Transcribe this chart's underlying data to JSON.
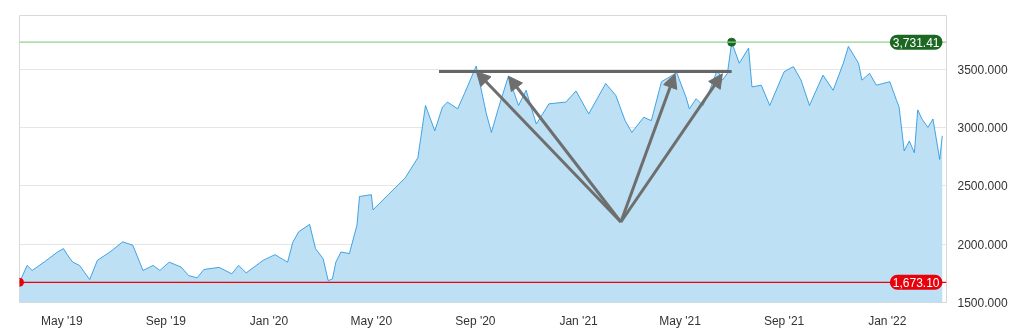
{
  "chart_data": {
    "type": "area",
    "x": [
      "2019-03-12",
      "2019-03-21",
      "2019-03-27",
      "2019-04-10",
      "2019-04-26",
      "2019-05-03",
      "2019-05-08",
      "2019-05-14",
      "2019-05-22",
      "2019-06-03",
      "2019-06-12",
      "2019-06-27",
      "2019-07-12",
      "2019-07-24",
      "2019-08-05",
      "2019-08-17",
      "2019-08-25",
      "2019-09-05",
      "2019-09-19",
      "2019-09-28",
      "2019-10-08",
      "2019-10-16",
      "2019-11-03",
      "2019-11-18",
      "2019-11-26",
      "2019-12-05",
      "2019-12-25",
      "2020-01-08",
      "2020-01-23",
      "2020-01-29",
      "2020-02-05",
      "2020-02-18",
      "2020-02-25",
      "2020-03-05",
      "2020-03-11",
      "2020-03-16",
      "2020-03-20",
      "2020-03-26",
      "2020-04-05",
      "2020-04-14",
      "2020-04-17",
      "2020-05-01",
      "2020-05-03",
      "2020-05-21",
      "2020-06-10",
      "2020-06-25",
      "2020-07-04",
      "2020-07-15",
      "2020-07-24",
      "2020-07-30",
      "2020-08-11",
      "2020-08-19",
      "2020-09-02",
      "2020-09-14",
      "2020-09-20",
      "2020-09-28",
      "2020-10-10",
      "2020-10-22",
      "2020-10-31",
      "2020-11-12",
      "2020-11-27",
      "2020-12-17",
      "2020-12-29",
      "2021-01-13",
      "2021-02-02",
      "2021-02-14",
      "2021-02-25",
      "2021-03-05",
      "2021-03-19",
      "2021-03-28",
      "2021-04-09",
      "2021-04-27",
      "2021-05-08",
      "2021-05-12",
      "2021-05-20",
      "2021-05-28",
      "2021-06-05",
      "2021-06-14",
      "2021-06-20",
      "2021-06-26",
      "2021-07-01",
      "2021-07-10",
      "2021-07-21",
      "2021-07-25",
      "2021-08-05",
      "2021-08-15",
      "2021-09-01",
      "2021-09-12",
      "2021-09-21",
      "2021-10-01",
      "2021-10-17",
      "2021-10-29",
      "2021-11-10",
      "2021-11-16",
      "2021-11-28",
      "2021-12-02",
      "2021-12-11",
      "2021-12-19",
      "2022-01-04",
      "2022-01-12",
      "2022-01-15",
      "2022-01-21",
      "2022-01-27",
      "2022-02-02",
      "2022-02-06",
      "2022-02-11",
      "2022-02-18",
      "2022-02-24",
      "2022-03-04",
      "2022-03-07"
    ],
    "series": [
      {
        "color": "#1a8fdd",
        "values": [
          1673.1,
          1818,
          1775,
          1846,
          1933,
          1962,
          1904,
          1846,
          1818,
          1697,
          1861,
          1933,
          2020,
          1991,
          1775,
          1818,
          1775,
          1846,
          1804,
          1731,
          1711,
          1783,
          1801,
          1746,
          1818,
          1754,
          1861,
          1910,
          1846,
          2014,
          2106,
          2170,
          1962,
          1875,
          1688,
          1702,
          1846,
          1933,
          1919,
          2164,
          2409,
          2424,
          2294,
          2424,
          2568,
          2741,
          3189,
          2972,
          3174,
          3218,
          3160,
          3290,
          3527,
          3117,
          2958,
          3160,
          3440,
          3189,
          3319,
          3030,
          3203,
          3218,
          3313,
          3117,
          3377,
          3276,
          3059,
          2958,
          3088,
          3059,
          3392,
          3470,
          3261,
          3160,
          3247,
          3189,
          3319,
          3493,
          3406,
          3464,
          3731.41,
          3551,
          3681,
          3348,
          3363,
          3189,
          3478,
          3522,
          3406,
          3189,
          3449,
          3319,
          3551,
          3695,
          3551,
          3406,
          3464,
          3363,
          3392,
          3232,
          3174,
          2799,
          2885,
          2784,
          3151,
          3073,
          3001,
          3073,
          2727,
          2929
        ]
      },
      {
        "type": "line",
        "color": "#666666",
        "x": [
          "2020-07-20",
          "2021-07-01"
        ],
        "values": [
          3480,
          3480
        ]
      }
    ],
    "xlim": [
      "2019-03-12",
      "2022-03-12"
    ],
    "ylim": [
      1500,
      3960
    ],
    "xticks": [
      {
        "value": "2019-05-01",
        "label": "May '19"
      },
      {
        "value": "2019-09-01",
        "label": "Sep '19"
      },
      {
        "value": "2020-01-01",
        "label": "Jan '20"
      },
      {
        "value": "2020-05-01",
        "label": "May '20"
      },
      {
        "value": "2020-09-01",
        "label": "Sep '20"
      },
      {
        "value": "2021-01-01",
        "label": "Jan '21"
      },
      {
        "value": "2021-05-01",
        "label": "May '21"
      },
      {
        "value": "2021-09-01",
        "label": "Sep '21"
      },
      {
        "value": "2022-01-01",
        "label": "Jan '22"
      }
    ],
    "yticks": [
      {
        "value": 1500,
        "label": "1500.000"
      },
      {
        "value": 2000,
        "label": "2000.000"
      },
      {
        "value": 2500,
        "label": "2500.000"
      },
      {
        "value": 3000,
        "label": "3000.000"
      },
      {
        "value": 3500,
        "label": "3500.000"
      }
    ],
    "ref_lines": [
      {
        "axis": "y",
        "value": 3731.41,
        "label": "3,731.41",
        "color": "#8fd08f"
      },
      {
        "axis": "y",
        "value": 1673.1,
        "label": "1,673.10",
        "color": "#e8000b"
      }
    ],
    "grid": "y"
  }
}
